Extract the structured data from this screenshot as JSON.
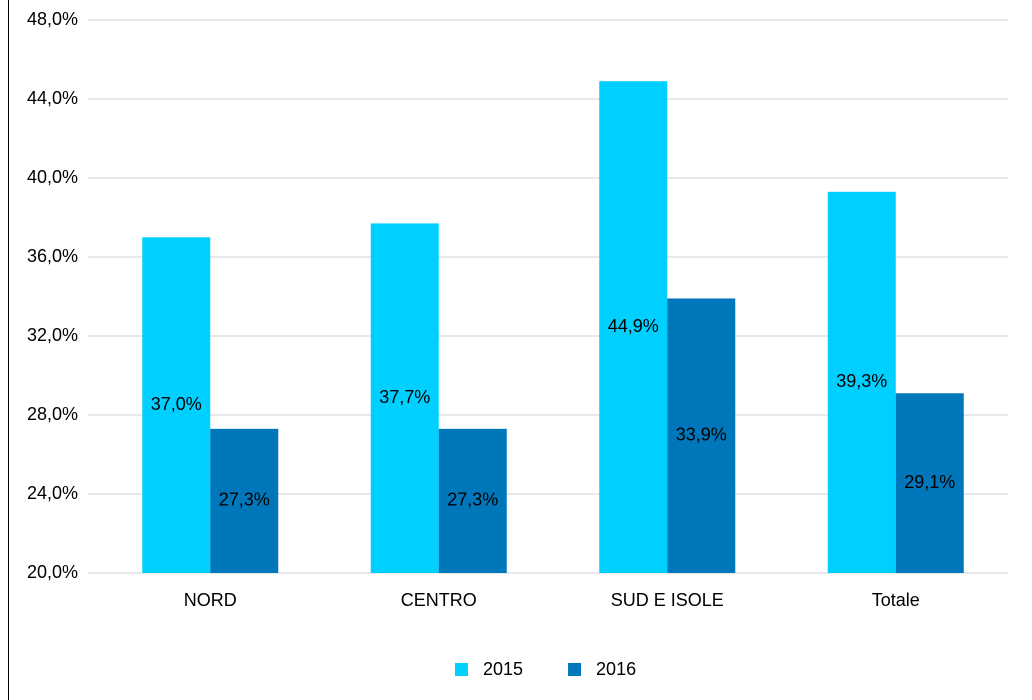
{
  "chart_data": {
    "type": "bar",
    "categories": [
      "NORD",
      "CENTRO",
      "SUD E ISOLE",
      "Totale"
    ],
    "series": [
      {
        "name": "2015",
        "color": "#00d0ff",
        "values": [
          37.0,
          37.7,
          44.9,
          39.3
        ],
        "value_labels": [
          "37,0%",
          "37,7%",
          "44,9%",
          "39,3%"
        ]
      },
      {
        "name": "2016",
        "color": "#0077bb",
        "values": [
          27.3,
          27.3,
          33.9,
          29.1
        ],
        "value_labels": [
          "27,3%",
          "27,3%",
          "33,9%",
          "29,1%"
        ]
      }
    ],
    "ylim": [
      20,
      48
    ],
    "yticks": [
      {
        "value": 20,
        "label": "20,0%"
      },
      {
        "value": 24,
        "label": "24,0%"
      },
      {
        "value": 28,
        "label": "28,0%"
      },
      {
        "value": 32,
        "label": "32,0%"
      },
      {
        "value": 36,
        "label": "36,0%"
      },
      {
        "value": 40,
        "label": "40,0%"
      },
      {
        "value": 44,
        "label": "44,0%"
      },
      {
        "value": 48,
        "label": "48,0%"
      }
    ],
    "grid": true,
    "legend": "bottom"
  }
}
